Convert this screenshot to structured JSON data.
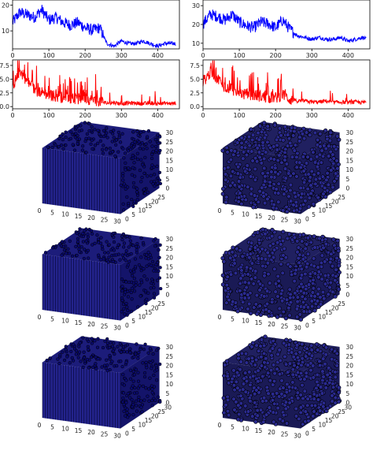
{
  "chart_data": [
    {
      "type": "line",
      "panel": "top-left",
      "color": "#0000ff",
      "xlim": [
        0,
        460
      ],
      "ylim": [
        3,
        22
      ],
      "xticks": [
        "0",
        "100",
        "200",
        "300",
        "400"
      ],
      "yticks": [
        "10",
        "20"
      ],
      "x": [
        0,
        20,
        40,
        60,
        80,
        100,
        120,
        140,
        160,
        180,
        200,
        220,
        240,
        260,
        280,
        300,
        320,
        340,
        360,
        380,
        400,
        420,
        440,
        450
      ],
      "y": [
        13,
        17,
        16,
        15,
        18,
        14,
        15,
        13,
        12,
        13,
        11,
        10,
        11,
        5,
        4,
        6,
        5,
        5,
        6,
        5,
        4,
        5,
        5,
        5
      ]
    },
    {
      "type": "line",
      "panel": "top-right",
      "color": "#0000ff",
      "xlim": [
        0,
        460
      ],
      "ylim": [
        7,
        33
      ],
      "xticks": [
        "0",
        "100",
        "200",
        "300",
        "400"
      ],
      "yticks": [
        "10",
        "20",
        "30"
      ],
      "x": [
        0,
        20,
        40,
        60,
        80,
        100,
        120,
        140,
        160,
        180,
        200,
        220,
        240,
        260,
        280,
        300,
        320,
        340,
        360,
        380,
        400,
        420,
        440,
        450
      ],
      "y": [
        20,
        25,
        24,
        22,
        25,
        21,
        19,
        18,
        21,
        20,
        18,
        22,
        17,
        14,
        13,
        12,
        13,
        12,
        12,
        13,
        11,
        12,
        13,
        12
      ]
    },
    {
      "type": "line",
      "panel": "middle-left",
      "color": "#ff0000",
      "xlim": [
        0,
        460
      ],
      "ylim": [
        -0.4,
        8.5
      ],
      "xticks": [
        "0",
        "100",
        "200",
        "300",
        "400"
      ],
      "yticks": [
        "0.0",
        "2.5",
        "5.0",
        "7.5"
      ],
      "x": [
        0,
        20,
        40,
        60,
        80,
        100,
        120,
        140,
        160,
        180,
        200,
        220,
        240,
        260,
        280,
        300,
        320,
        340,
        360,
        380,
        400,
        420,
        440,
        450
      ],
      "y": [
        3.5,
        6.5,
        4.5,
        3.0,
        2.5,
        2.0,
        1.8,
        1.5,
        1.5,
        1.2,
        1.5,
        1.0,
        0.9,
        0.6,
        0.7,
        0.5,
        0.6,
        0.6,
        0.5,
        0.6,
        0.5,
        0.6,
        0.5,
        0.6
      ]
    },
    {
      "type": "line",
      "panel": "middle-right",
      "color": "#ff0000",
      "xlim": [
        0,
        460
      ],
      "ylim": [
        -0.4,
        8.5
      ],
      "xticks": [
        "0",
        "100",
        "200",
        "300",
        "400"
      ],
      "yticks": [
        "0.0",
        "2.5",
        "5.0",
        "7.5"
      ],
      "x": [
        0,
        20,
        40,
        60,
        80,
        100,
        120,
        140,
        160,
        180,
        200,
        220,
        240,
        260,
        280,
        300,
        320,
        340,
        360,
        380,
        400,
        420,
        440,
        450
      ],
      "y": [
        4.5,
        6.0,
        5.0,
        3.5,
        3.0,
        2.5,
        2.0,
        2.0,
        1.8,
        1.5,
        1.5,
        2.0,
        1.2,
        1.0,
        1.0,
        0.8,
        0.8,
        1.0,
        0.7,
        0.8,
        0.7,
        0.8,
        0.7,
        0.8
      ]
    },
    {
      "type": "scatter3d",
      "panel": "row1-left",
      "style": "dense",
      "color": "#0a0a6e",
      "xticks": [
        "0",
        "5",
        "10",
        "15",
        "20",
        "25",
        "30"
      ],
      "yticks": [
        "0",
        "5",
        "10",
        "15",
        "20",
        "25"
      ],
      "zticks": [
        "0",
        "5",
        "10",
        "15",
        "20",
        "25",
        "30"
      ]
    },
    {
      "type": "scatter3d",
      "panel": "row1-right",
      "style": "sparse",
      "color": "#0a0a6e",
      "xticks": [
        "0",
        "5",
        "10",
        "15",
        "20",
        "25",
        "30"
      ],
      "yticks": [
        "0",
        "5",
        "10",
        "15",
        "20",
        "25"
      ],
      "zticks": [
        "0",
        "5",
        "10",
        "15",
        "20",
        "25",
        "30"
      ]
    },
    {
      "type": "scatter3d",
      "panel": "row2-left",
      "style": "dense",
      "color": "#0a0a6e",
      "xticks": [
        "0",
        "5",
        "10",
        "15",
        "20",
        "25",
        "30"
      ],
      "yticks": [
        "0",
        "5",
        "10",
        "15",
        "20",
        "25"
      ],
      "zticks": [
        "0",
        "5",
        "10",
        "15",
        "20",
        "25",
        "30"
      ]
    },
    {
      "type": "scatter3d",
      "panel": "row2-right",
      "style": "sparse",
      "color": "#0a0a6e",
      "xticks": [
        "0",
        "5",
        "10",
        "15",
        "20",
        "25",
        "30"
      ],
      "yticks": [
        "0",
        "5",
        "10",
        "15",
        "20",
        "25"
      ],
      "zticks": [
        "0",
        "5",
        "10",
        "15",
        "20",
        "25",
        "30"
      ]
    },
    {
      "type": "scatter3d",
      "panel": "row3-left",
      "style": "dense",
      "color": "#0a0a6e",
      "xticks": [
        "0",
        "5",
        "10",
        "15",
        "20",
        "25",
        "30"
      ],
      "yticks": [
        "0",
        "5",
        "10",
        "15",
        "20",
        "25",
        "30"
      ],
      "zticks": [
        "0",
        "5",
        "10",
        "15",
        "20",
        "25",
        "30"
      ]
    },
    {
      "type": "scatter3d",
      "panel": "row3-right",
      "style": "sparse",
      "color": "#0a0a6e",
      "xticks": [
        "0",
        "5",
        "10",
        "15",
        "20",
        "25",
        "30"
      ],
      "yticks": [
        "0",
        "5",
        "10",
        "15",
        "20",
        "25",
        "30"
      ],
      "zticks": [
        "0",
        "5",
        "10",
        "15",
        "20",
        "25",
        "30"
      ]
    }
  ]
}
